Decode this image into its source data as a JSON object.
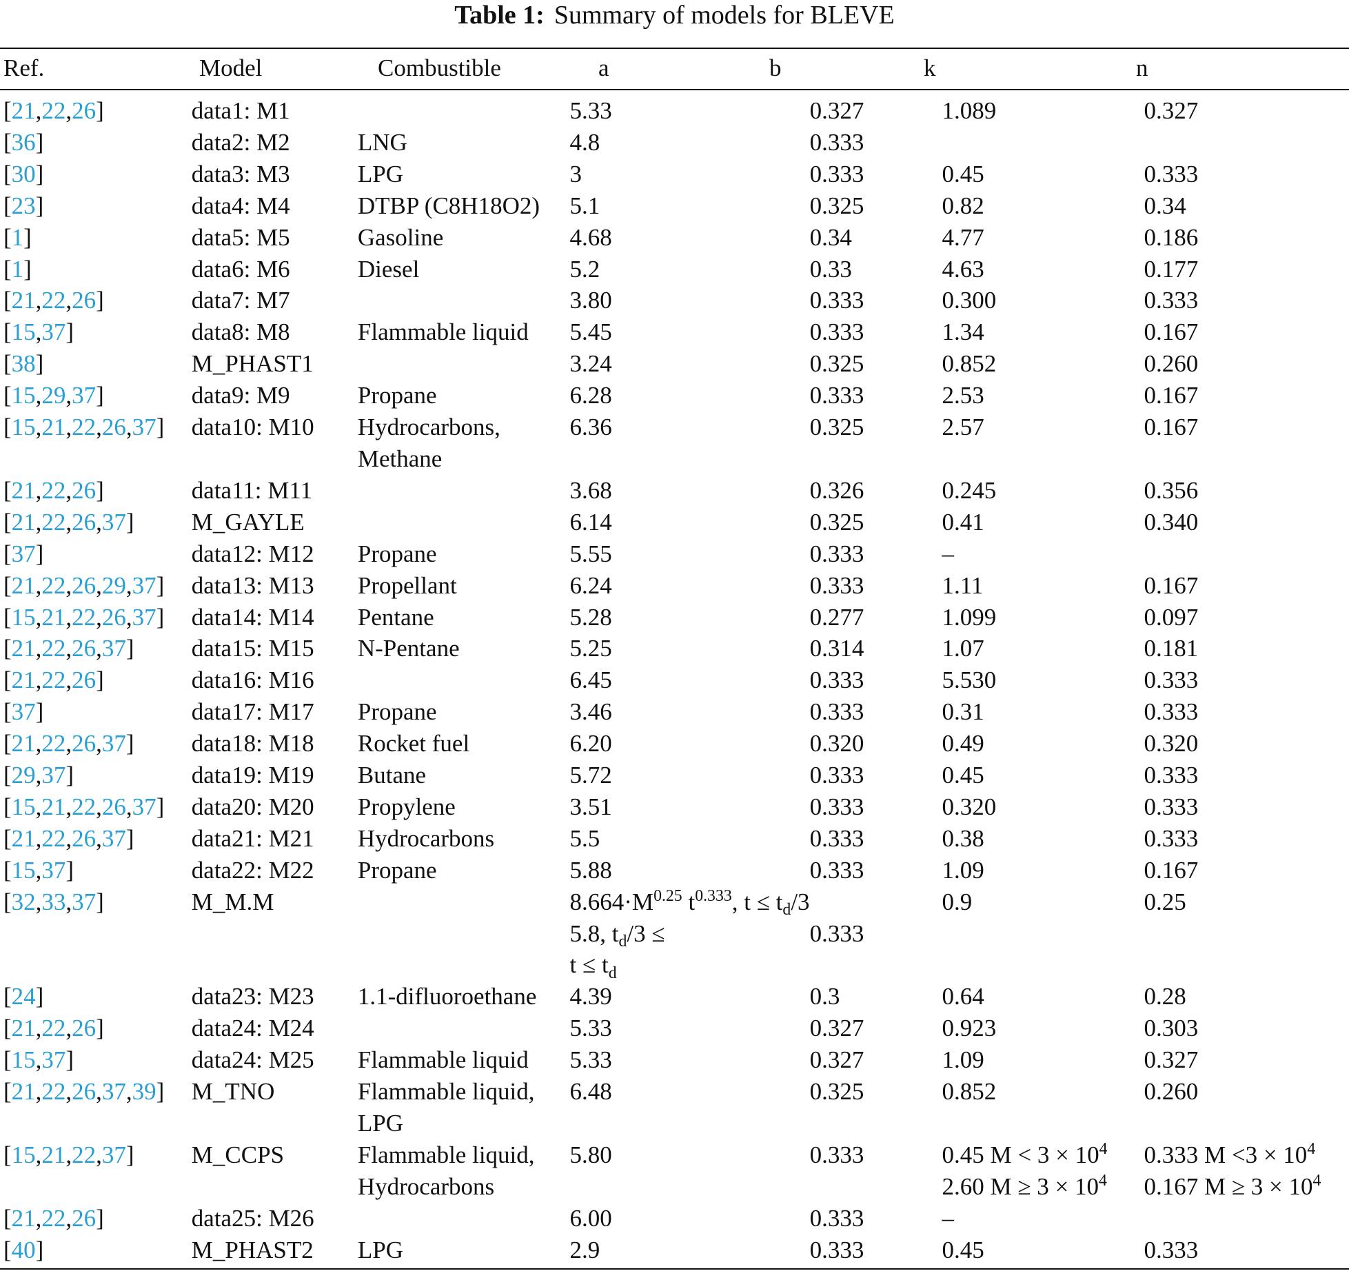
{
  "table": {
    "caption": {
      "label": "Table 1:",
      "text": "Summary of models for BLEVE"
    },
    "columns": [
      "Ref.",
      "Model",
      "Combustible",
      "a",
      "b",
      "k",
      "n"
    ],
    "rows": [
      [
        [
          "[",
          "21",
          ",",
          "22",
          ",",
          "26",
          "]"
        ],
        "data1: M1",
        null,
        "5.33",
        "0.327",
        "1.089",
        "0.327"
      ],
      [
        [
          "[",
          "36",
          "]"
        ],
        "data2: M2",
        "LNG",
        "4.8",
        "0.333",
        null,
        null
      ],
      [
        [
          "[",
          "30",
          "]"
        ],
        "data3: M3",
        "LPG",
        "3",
        "0.333",
        "0.45",
        "0.333"
      ],
      [
        [
          "[",
          "23",
          "]"
        ],
        "data4: M4",
        "DTBP (C8H18O2)",
        "5.1",
        "0.325",
        "0.82",
        "0.34"
      ],
      [
        [
          "[",
          "1",
          "]"
        ],
        "data5: M5",
        "Gasoline",
        "4.68",
        "0.34",
        "4.77",
        "0.186"
      ],
      [
        [
          "[",
          "1",
          "]"
        ],
        "data6: M6",
        "Diesel",
        "5.2",
        "0.33",
        "4.63",
        "0.177"
      ],
      [
        [
          "[",
          "21",
          ",",
          "22",
          ",",
          "26",
          "]"
        ],
        "data7: M7",
        null,
        "3.80",
        "0.333",
        "0.300",
        "0.333"
      ],
      [
        [
          "[",
          "15",
          ",",
          "37",
          "]"
        ],
        "data8: M8",
        "Flammable liquid",
        "5.45",
        "0.333",
        "1.34",
        "0.167"
      ],
      [
        [
          "[",
          "38",
          "]"
        ],
        "M_PHAST1",
        null,
        "3.24",
        "0.325",
        "0.852",
        "0.260"
      ],
      [
        [
          "[",
          "15",
          ",",
          "29",
          ",",
          "37",
          "]"
        ],
        "data9: M9",
        "Propane",
        "6.28",
        "0.333",
        "2.53",
        "0.167"
      ],
      [
        [
          "[",
          "15",
          ",",
          "21",
          ",",
          "22",
          ",",
          "26",
          ",",
          "37",
          "]"
        ],
        "data10: M10",
        "Hydrocarbons,\nMethane",
        "6.36",
        "0.325",
        "2.57",
        "0.167"
      ],
      [
        [
          "[",
          "21",
          ",",
          "22",
          ",",
          "26",
          "]"
        ],
        "data11: M11",
        null,
        "3.68",
        "0.326",
        "0.245",
        "0.356"
      ],
      [
        [
          "[",
          "21",
          ",",
          "22",
          ",",
          "26",
          ",",
          "37",
          "]"
        ],
        "M_GAYLE",
        null,
        "6.14",
        "0.325",
        "0.41",
        "0.340"
      ],
      [
        [
          "[",
          "37",
          "]"
        ],
        "data12: M12",
        "Propane",
        "5.55",
        "0.333",
        "–",
        null
      ],
      [
        [
          "[",
          "21",
          ",",
          "22",
          ",",
          "26",
          ",",
          "29",
          ",",
          "37",
          "]"
        ],
        "data13: M13",
        "Propellant",
        "6.24",
        "0.333",
        "1.11",
        "0.167"
      ],
      [
        [
          "[",
          "15",
          ",",
          "21",
          ",",
          "22",
          ",",
          "26",
          ",",
          "37",
          "]"
        ],
        "data14: M14",
        "Pentane",
        "5.28",
        "0.277",
        "1.099",
        "0.097"
      ],
      [
        [
          "[",
          "21",
          ",",
          "22",
          ",",
          "26",
          ",",
          "37",
          "]"
        ],
        "data15: M15",
        "N-Pentane",
        "5.25",
        "0.314",
        "1.07",
        "0.181"
      ],
      [
        [
          "[",
          "21",
          ",",
          "22",
          ",",
          "26",
          "]"
        ],
        "data16: M16",
        null,
        "6.45",
        "0.333",
        "5.530",
        "0.333"
      ],
      [
        [
          "[",
          "37",
          "]"
        ],
        "data17: M17",
        "Propane",
        "3.46",
        "0.333",
        "0.31",
        "0.333"
      ],
      [
        [
          "[",
          "21",
          ",",
          "22",
          ",",
          "26",
          ",",
          "37",
          "]"
        ],
        "data18: M18",
        "Rocket fuel",
        "6.20",
        "0.320",
        "0.49",
        "0.320"
      ],
      [
        [
          "[",
          "29",
          ",",
          "37",
          "]"
        ],
        "data19: M19",
        "Butane",
        "5.72",
        "0.333",
        "0.45",
        "0.333"
      ],
      [
        [
          "[",
          "15",
          ",",
          "21",
          ",",
          "22",
          ",",
          "26",
          ",",
          "37",
          "]"
        ],
        "data20: M20",
        "Propylene",
        "3.51",
        "0.333",
        "0.320",
        "0.333"
      ],
      [
        [
          "[",
          "21",
          ",",
          "22",
          ",",
          "26",
          ",",
          "37",
          "]"
        ],
        "data21: M21",
        "Hydrocarbons",
        "5.5",
        "0.333",
        "0.38",
        "0.333"
      ],
      [
        [
          "[",
          "15",
          ",",
          "37",
          "]"
        ],
        "data22: M22",
        "Propane",
        "5.88",
        "0.333",
        "1.09",
        "0.167"
      ],
      [
        [
          "[",
          "32",
          ",",
          "33",
          ",",
          "37",
          "]"
        ],
        "M_M.M",
        null,
        [
          "8.664·M",
          {
            "sup": "0.25"
          },
          " t",
          {
            "sup": "0.333"
          },
          ", t ≤ t",
          {
            "sub": "d"
          },
          "/3\n5.8, t",
          {
            "sub": "d"
          },
          "/3 ≤\nt ≤ t",
          {
            "sub": "d"
          }
        ],
        "\n0.333",
        "0.9",
        "0.25"
      ],
      [
        [
          "[",
          "24",
          "]"
        ],
        "data23: M23",
        "1.1-difluoroethane",
        "4.39",
        "0.3",
        "0.64",
        "0.28"
      ],
      [
        [
          "[",
          "21",
          ",",
          "22",
          ",",
          "26",
          "]"
        ],
        "data24: M24",
        null,
        "5.33",
        "0.327",
        "0.923",
        "0.303"
      ],
      [
        [
          "[",
          "15",
          ",",
          "37",
          "]"
        ],
        "data24: M25",
        "Flammable liquid",
        "5.33",
        "0.327",
        "1.09",
        "0.327"
      ],
      [
        [
          "[",
          "21",
          ",",
          "22",
          ",",
          "26",
          ",",
          "37",
          ",",
          "39",
          "]"
        ],
        "M_TNO",
        "Flammable liquid,\nLPG",
        "6.48",
        "0.325",
        "0.852",
        "0.260"
      ],
      [
        [
          "[",
          "15",
          ",",
          "21",
          ",",
          "22",
          ",",
          "37",
          "]"
        ],
        "M_CCPS",
        "Flammable liquid,\nHydrocarbons",
        "5.80",
        "0.333",
        [
          "0.45 M < 3 × 10",
          {
            "sup": "4"
          },
          "\n2.60 M ≥ 3 × 10",
          {
            "sup": "4"
          }
        ],
        [
          "0.333 M <3 × 10",
          {
            "sup": "4"
          },
          "\n0.167 M ≥ 3 × 10",
          {
            "sup": "4"
          }
        ]
      ],
      [
        [
          "[",
          "21",
          ",",
          "22",
          ",",
          "26",
          "]"
        ],
        "data25: M26",
        null,
        "6.00",
        "0.333",
        "–",
        null
      ],
      [
        [
          "[",
          "40",
          "]"
        ],
        "M_PHAST2",
        "LPG",
        "2.9",
        "0.333",
        "0.45",
        "0.333"
      ]
    ]
  }
}
